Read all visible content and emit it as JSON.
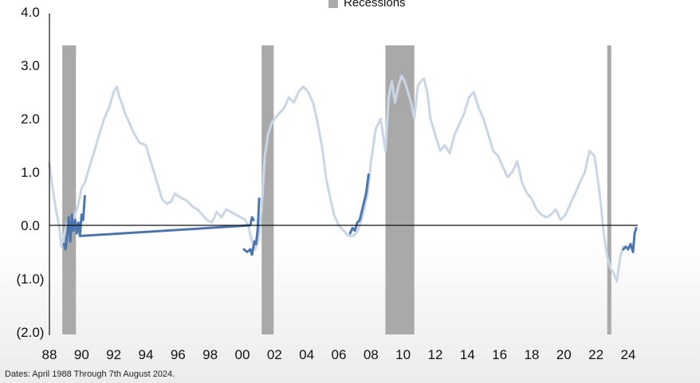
{
  "chart_data": {
    "type": "line",
    "title": "",
    "xlabel": "",
    "ylabel": "",
    "xlim": [
      1988.0,
      2024.6
    ],
    "ylim": [
      -2.0,
      4.0
    ],
    "yticks": [
      {
        "value": 4.0,
        "label": "4.0"
      },
      {
        "value": 3.0,
        "label": "3.0"
      },
      {
        "value": 2.0,
        "label": "2.0"
      },
      {
        "value": 1.0,
        "label": "1.0"
      },
      {
        "value": 0.0,
        "label": "0.0"
      },
      {
        "value": -1.0,
        "label": "(1.0)"
      },
      {
        "value": -2.0,
        "label": "(2.0)"
      }
    ],
    "xticks": [
      {
        "value": 1988,
        "label": "88"
      },
      {
        "value": 1990,
        "label": "90"
      },
      {
        "value": 1992,
        "label": "92"
      },
      {
        "value": 1994,
        "label": "94"
      },
      {
        "value": 1996,
        "label": "96"
      },
      {
        "value": 1998,
        "label": "98"
      },
      {
        "value": 2000,
        "label": "00"
      },
      {
        "value": 2002,
        "label": "02"
      },
      {
        "value": 2004,
        "label": "04"
      },
      {
        "value": 2006,
        "label": "06"
      },
      {
        "value": 2008,
        "label": "08"
      },
      {
        "value": 2010,
        "label": "10"
      },
      {
        "value": 2012,
        "label": "12"
      },
      {
        "value": 2014,
        "label": "14"
      },
      {
        "value": 2016,
        "label": "16"
      },
      {
        "value": 2018,
        "label": "18"
      },
      {
        "value": 2020,
        "label": "20"
      },
      {
        "value": 2022,
        "label": "22"
      },
      {
        "value": 2024,
        "label": "24"
      }
    ],
    "legend": {
      "position": "top-center",
      "entries": [
        {
          "label": "Recessions",
          "color": "#a9a9a9"
        }
      ]
    },
    "recessions": [
      {
        "start": 1988.8,
        "end": 1989.65
      },
      {
        "start": 2001.2,
        "end": 2001.95
      },
      {
        "start": 2008.9,
        "end": 2010.7
      },
      {
        "start": 2022.7,
        "end": 2022.95
      }
    ],
    "series": [
      {
        "style": "background",
        "color": "#c9d6e6",
        "x": [
          1988.0,
          1988.2,
          1988.4,
          1988.6,
          1988.75,
          1988.9,
          1989.05,
          1989.2,
          1989.4,
          1989.6,
          1989.8,
          1990.0,
          1990.2,
          1990.5,
          1990.8,
          1991.1,
          1991.4,
          1991.7,
          1992.0,
          1992.2,
          1992.35,
          1992.5,
          1992.7,
          1993.0,
          1993.3,
          1993.6,
          1994.0,
          1994.2,
          1994.4,
          1994.6,
          1995.0,
          1995.3,
          1995.6,
          1995.8,
          1996.0,
          1996.3,
          1996.6,
          1996.9,
          1997.2,
          1997.5,
          1997.8,
          1998.1,
          1998.4,
          1998.7,
          1999.0,
          1999.3,
          1999.6,
          1999.9,
          2000.2,
          2000.4,
          2000.6,
          2000.8,
          2001.0,
          2001.2,
          2001.4,
          2001.6,
          2001.8,
          2002.0,
          2002.3,
          2002.6,
          2002.9,
          2003.2,
          2003.5,
          2003.8,
          2004.1,
          2004.4,
          2004.7,
          2005.0,
          2005.2,
          2005.4,
          2005.7,
          2006.0,
          2006.3,
          2006.6,
          2006.9,
          2007.2,
          2007.5,
          2007.8,
          2008.0,
          2008.3,
          2008.6,
          2008.9,
          2009.1,
          2009.3,
          2009.5,
          2009.7,
          2009.9,
          2010.1,
          2010.3,
          2010.5,
          2010.7,
          2010.9,
          2011.1,
          2011.3,
          2011.5,
          2011.7,
          2012.0,
          2012.3,
          2012.6,
          2012.9,
          2013.2,
          2013.5,
          2013.8,
          2014.1,
          2014.4,
          2014.7,
          2015.0,
          2015.3,
          2015.6,
          2015.9,
          2016.2,
          2016.5,
          2016.8,
          2017.1,
          2017.4,
          2017.7,
          2018.0,
          2018.3,
          2018.6,
          2018.9,
          2019.2,
          2019.5,
          2019.8,
          2020.1,
          2020.4,
          2020.7,
          2021.0,
          2021.3,
          2021.6,
          2021.9,
          2022.1,
          2022.3,
          2022.5,
          2022.7,
          2022.9,
          2023.1,
          2023.3,
          2023.5,
          2023.7
        ],
        "y": [
          1.15,
          0.7,
          0.3,
          0.0,
          -0.4,
          -0.2,
          0.0,
          0.1,
          0.05,
          0.2,
          0.4,
          0.7,
          0.8,
          1.1,
          1.4,
          1.7,
          2.0,
          2.2,
          2.5,
          2.6,
          2.4,
          2.3,
          2.1,
          1.9,
          1.7,
          1.55,
          1.5,
          1.3,
          1.1,
          0.9,
          0.5,
          0.4,
          0.45,
          0.6,
          0.55,
          0.5,
          0.45,
          0.35,
          0.3,
          0.2,
          0.1,
          0.05,
          0.25,
          0.15,
          0.3,
          0.25,
          0.2,
          0.15,
          0.1,
          -0.05,
          -0.3,
          -0.45,
          -0.3,
          0.3,
          1.3,
          1.7,
          1.9,
          2.0,
          2.1,
          2.2,
          2.4,
          2.3,
          2.5,
          2.6,
          2.5,
          2.3,
          1.9,
          1.4,
          0.9,
          0.6,
          0.2,
          0.0,
          -0.1,
          -0.2,
          -0.2,
          -0.1,
          0.2,
          0.6,
          1.2,
          1.8,
          2.0,
          1.4,
          2.4,
          2.7,
          2.3,
          2.6,
          2.8,
          2.7,
          2.5,
          2.3,
          2.0,
          2.6,
          2.7,
          2.75,
          2.5,
          2.0,
          1.7,
          1.4,
          1.5,
          1.35,
          1.7,
          1.9,
          2.1,
          2.4,
          2.5,
          2.2,
          2.0,
          1.7,
          1.4,
          1.3,
          1.1,
          0.9,
          1.0,
          1.2,
          0.8,
          0.6,
          0.5,
          0.3,
          0.2,
          0.15,
          0.2,
          0.3,
          0.1,
          0.2,
          0.4,
          0.6,
          0.8,
          1.0,
          1.4,
          1.3,
          0.9,
          0.4,
          -0.2,
          -0.6,
          -0.8,
          -0.9,
          -1.05,
          -0.6,
          -0.4
        ]
      },
      {
        "style": "highlight",
        "color": "#4a76ad",
        "segments": [
          {
            "x": [
              1988.9,
              1989.0,
              1989.1,
              1989.2,
              1989.3,
              1989.4,
              1989.5,
              1989.6,
              1989.7,
              1989.8,
              1989.9,
              2000.5,
              2000.6,
              2000.7
            ],
            "y": [
              -0.35,
              -0.45,
              -0.2,
              0.15,
              -0.3,
              0.2,
              -0.1,
              0.1,
              -0.15,
              0.05,
              -0.2,
              0.0,
              0.15,
              0.1
            ]
          },
          {
            "x": [
              1989.9,
              1990.0,
              1990.1,
              1990.2
            ],
            "y": [
              -0.2,
              0.2,
              0.1,
              0.55
            ]
          },
          {
            "x": [
              2000.1,
              2000.3,
              2000.5,
              2000.6,
              2000.75,
              2000.85,
              2000.95,
              2001.05
            ],
            "y": [
              -0.45,
              -0.5,
              -0.45,
              -0.55,
              -0.3,
              -0.35,
              -0.1,
              0.5
            ]
          },
          {
            "x": [
              2006.7,
              2006.85,
              2007.0,
              2007.15,
              2007.3,
              2007.5,
              2007.7,
              2007.85
            ],
            "y": [
              -0.15,
              -0.05,
              -0.1,
              0.05,
              0.1,
              0.35,
              0.6,
              0.95
            ]
          },
          {
            "x": [
              2023.7,
              2023.85,
              2024.0,
              2024.15,
              2024.3,
              2024.4,
              2024.5
            ],
            "y": [
              -0.45,
              -0.4,
              -0.45,
              -0.35,
              -0.5,
              -0.15,
              -0.05
            ]
          }
        ]
      }
    ]
  },
  "footnote": "Dates: April 1988 Through 7th August 2024."
}
